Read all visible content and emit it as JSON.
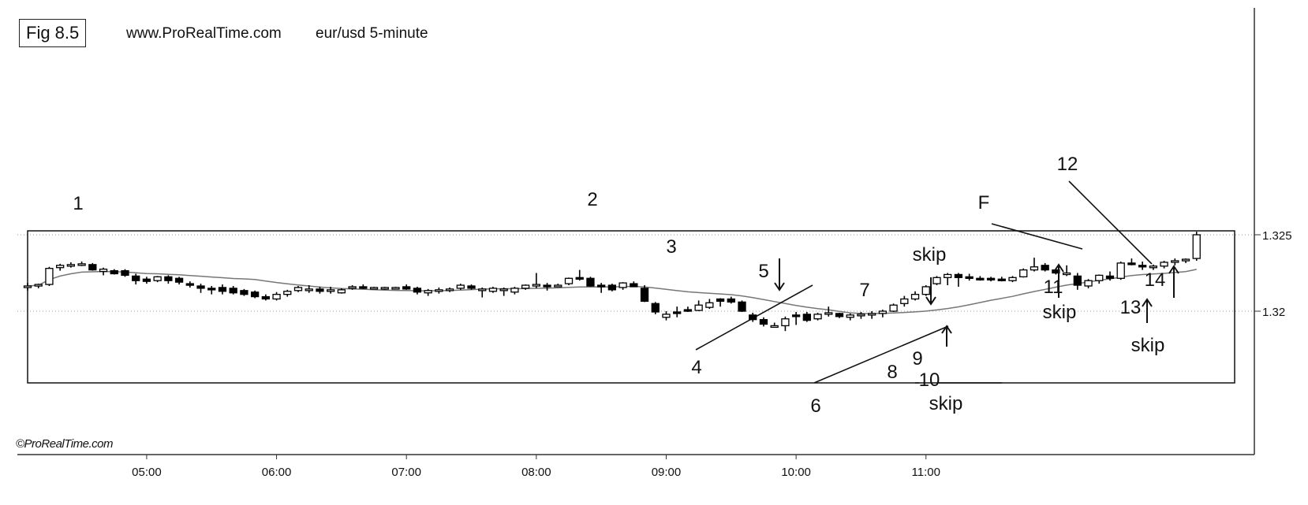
{
  "header": {
    "fig_label": "Fig 8.5",
    "site": "www.ProRealTime.com",
    "symbol": "eur/usd  5-minute"
  },
  "watermark": "©ProRealTime.com",
  "colors": {
    "bull_fill": "#ffffff",
    "bear_fill": "#000000",
    "ma": "#777777",
    "grid": "#999999"
  },
  "chart_data": {
    "type": "candlestick",
    "symbol": "eur/usd",
    "timeframe": "5-minute",
    "x_ticks": [
      "05:00",
      "06:00",
      "07:00",
      "08:00",
      "09:00",
      "10:00",
      "11:00"
    ],
    "y_ticks": [
      1.32,
      1.325
    ],
    "y_tick_labels": [
      "1.32",
      "1.325"
    ],
    "ylim": [
      1.3145,
      1.3285
    ],
    "grid": "horizontal dotted",
    "start_time": "04:05",
    "candles": [
      [
        1.3216,
        1.32185,
        1.32135,
        1.32165
      ],
      [
        1.32165,
        1.3218,
        1.3215,
        1.32175
      ],
      [
        1.32175,
        1.3229,
        1.32165,
        1.3228
      ],
      [
        1.32285,
        1.3231,
        1.32265,
        1.323
      ],
      [
        1.32295,
        1.3232,
        1.32285,
        1.32305
      ],
      [
        1.32305,
        1.32325,
        1.32295,
        1.3231
      ],
      [
        1.32305,
        1.32315,
        1.32265,
        1.3227
      ],
      [
        1.3226,
        1.32285,
        1.32235,
        1.32275
      ],
      [
        1.32265,
        1.32275,
        1.3224,
        1.32245
      ],
      [
        1.32265,
        1.32275,
        1.32225,
        1.32235
      ],
      [
        1.3223,
        1.32245,
        1.32175,
        1.322
      ],
      [
        1.3221,
        1.32225,
        1.3218,
        1.32195
      ],
      [
        1.322,
        1.3223,
        1.3219,
        1.32225
      ],
      [
        1.32225,
        1.32235,
        1.3218,
        1.322
      ],
      [
        1.32215,
        1.32225,
        1.32175,
        1.3219
      ],
      [
        1.3218,
        1.32195,
        1.32155,
        1.3217
      ],
      [
        1.32165,
        1.3218,
        1.3212,
        1.3215
      ],
      [
        1.3215,
        1.32165,
        1.3211,
        1.3214
      ],
      [
        1.32155,
        1.32175,
        1.3211,
        1.3213
      ],
      [
        1.3215,
        1.32165,
        1.3211,
        1.3212
      ],
      [
        1.32135,
        1.32145,
        1.321,
        1.3211
      ],
      [
        1.32125,
        1.32135,
        1.32085,
        1.32095
      ],
      [
        1.32095,
        1.3211,
        1.3207,
        1.3208
      ],
      [
        1.3208,
        1.32125,
        1.3207,
        1.3211
      ],
      [
        1.3211,
        1.3214,
        1.32095,
        1.3213
      ],
      [
        1.32135,
        1.32165,
        1.32125,
        1.32155
      ],
      [
        1.32135,
        1.3217,
        1.3212,
        1.32145
      ],
      [
        1.32145,
        1.3216,
        1.32115,
        1.3213
      ],
      [
        1.32135,
        1.3216,
        1.32115,
        1.3214
      ],
      [
        1.3212,
        1.3215,
        1.32115,
        1.3214
      ],
      [
        1.3215,
        1.3217,
        1.3214,
        1.3216
      ],
      [
        1.3216,
        1.32175,
        1.32145,
        1.32155
      ],
      [
        1.3215,
        1.3216,
        1.32145,
        1.32155
      ],
      [
        1.3215,
        1.3216,
        1.3214,
        1.32155
      ],
      [
        1.3215,
        1.3216,
        1.32145,
        1.32155
      ],
      [
        1.3216,
        1.32175,
        1.3214,
        1.32145
      ],
      [
        1.3215,
        1.3216,
        1.3211,
        1.32125
      ],
      [
        1.3212,
        1.32145,
        1.321,
        1.32135
      ],
      [
        1.32135,
        1.32155,
        1.32115,
        1.3214
      ],
      [
        1.3214,
        1.32155,
        1.32125,
        1.32145
      ],
      [
        1.3215,
        1.3218,
        1.3214,
        1.3217
      ],
      [
        1.32165,
        1.32175,
        1.3214,
        1.3215
      ],
      [
        1.32145,
        1.32155,
        1.3209,
        1.32145
      ],
      [
        1.3213,
        1.3216,
        1.3212,
        1.3215
      ],
      [
        1.3214,
        1.32155,
        1.321,
        1.32145
      ],
      [
        1.32125,
        1.3216,
        1.3211,
        1.3215
      ],
      [
        1.3215,
        1.32175,
        1.3214,
        1.3217
      ],
      [
        1.3217,
        1.3225,
        1.3215,
        1.32175
      ],
      [
        1.3217,
        1.32185,
        1.32135,
        1.3216
      ],
      [
        1.32165,
        1.3218,
        1.3216,
        1.3217
      ],
      [
        1.3218,
        1.3222,
        1.3217,
        1.32215
      ],
      [
        1.3222,
        1.3227,
        1.322,
        1.32215
      ],
      [
        1.32215,
        1.32225,
        1.3216,
        1.32165
      ],
      [
        1.3217,
        1.32185,
        1.3212,
        1.32165
      ],
      [
        1.3217,
        1.3218,
        1.3213,
        1.3214
      ],
      [
        1.32155,
        1.3219,
        1.3214,
        1.32185
      ],
      [
        1.3218,
        1.32195,
        1.3216,
        1.3216
      ],
      [
        1.3215,
        1.3217,
        1.3206,
        1.32065
      ],
      [
        1.3205,
        1.3206,
        1.3198,
        1.31995
      ],
      [
        1.3196,
        1.32,
        1.3194,
        1.3198
      ],
      [
        1.31995,
        1.3203,
        1.3196,
        1.3199
      ],
      [
        1.3201,
        1.3203,
        1.31995,
        1.32
      ],
      [
        1.32005,
        1.3207,
        1.32,
        1.3204
      ],
      [
        1.32025,
        1.3208,
        1.32015,
        1.32055
      ],
      [
        1.3208,
        1.32085,
        1.3203,
        1.32065
      ],
      [
        1.3208,
        1.32095,
        1.3205,
        1.3206
      ],
      [
        1.3206,
        1.3207,
        1.31995,
        1.32
      ],
      [
        1.31975,
        1.3199,
        1.3193,
        1.31945
      ],
      [
        1.31945,
        1.3196,
        1.319,
        1.31915
      ],
      [
        1.31905,
        1.31925,
        1.31895,
        1.31905
      ],
      [
        1.31905,
        1.31965,
        1.3187,
        1.3195
      ],
      [
        1.31975,
        1.31995,
        1.3191,
        1.3197
      ],
      [
        1.3198,
        1.31995,
        1.3193,
        1.3194
      ],
      [
        1.3195,
        1.3199,
        1.3194,
        1.3198
      ],
      [
        1.3198,
        1.3203,
        1.31965,
        1.3199
      ],
      [
        1.31985,
        1.3199,
        1.31955,
        1.31965
      ],
      [
        1.3196,
        1.31985,
        1.3194,
        1.31975
      ],
      [
        1.3197,
        1.31995,
        1.3195,
        1.3198
      ],
      [
        1.31975,
        1.32,
        1.3195,
        1.31985
      ],
      [
        1.31985,
        1.3201,
        1.3196,
        1.32
      ],
      [
        1.32,
        1.3205,
        1.31995,
        1.3204
      ],
      [
        1.3205,
        1.321,
        1.3203,
        1.3208
      ],
      [
        1.3208,
        1.3213,
        1.3207,
        1.3211
      ],
      [
        1.3211,
        1.3217,
        1.321,
        1.3216
      ],
      [
        1.3218,
        1.3223,
        1.3217,
        1.3222
      ],
      [
        1.3222,
        1.3225,
        1.3217,
        1.3224
      ],
      [
        1.3224,
        1.3225,
        1.3216,
        1.3222
      ],
      [
        1.32225,
        1.32245,
        1.322,
        1.32215
      ],
      [
        1.32215,
        1.3223,
        1.322,
        1.3221
      ],
      [
        1.32215,
        1.32225,
        1.32195,
        1.32205
      ],
      [
        1.3221,
        1.32225,
        1.32195,
        1.322
      ],
      [
        1.322,
        1.3223,
        1.3219,
        1.3222
      ],
      [
        1.32225,
        1.3228,
        1.3222,
        1.3227
      ],
      [
        1.3227,
        1.3235,
        1.3226,
        1.3229
      ],
      [
        1.323,
        1.32315,
        1.3226,
        1.3227
      ],
      [
        1.3227,
        1.3228,
        1.3224,
        1.3225
      ],
      [
        1.3225,
        1.323,
        1.3223,
        1.3225
      ],
      [
        1.3223,
        1.3225,
        1.3214,
        1.3217
      ],
      [
        1.32165,
        1.3221,
        1.3215,
        1.322
      ],
      [
        1.322,
        1.3224,
        1.3218,
        1.32235
      ],
      [
        1.3223,
        1.3226,
        1.322,
        1.32215
      ],
      [
        1.32215,
        1.32325,
        1.32205,
        1.32315
      ],
      [
        1.32315,
        1.32345,
        1.323,
        1.3231
      ],
      [
        1.323,
        1.32325,
        1.3227,
        1.3229
      ],
      [
        1.3229,
        1.32305,
        1.3227,
        1.32295
      ],
      [
        1.32295,
        1.3233,
        1.3228,
        1.3232
      ],
      [
        1.3232,
        1.32345,
        1.323,
        1.3233
      ],
      [
        1.3233,
        1.32345,
        1.32315,
        1.3234
      ],
      [
        1.32345,
        1.3252,
        1.3233,
        1.325
      ]
    ],
    "annotations": [
      "1",
      "2",
      "3",
      "4",
      "5",
      "6",
      "7",
      "8",
      "9",
      "10",
      "11",
      "12",
      "13",
      "14",
      "F",
      "skip",
      "skip",
      "skip",
      "skip"
    ]
  }
}
